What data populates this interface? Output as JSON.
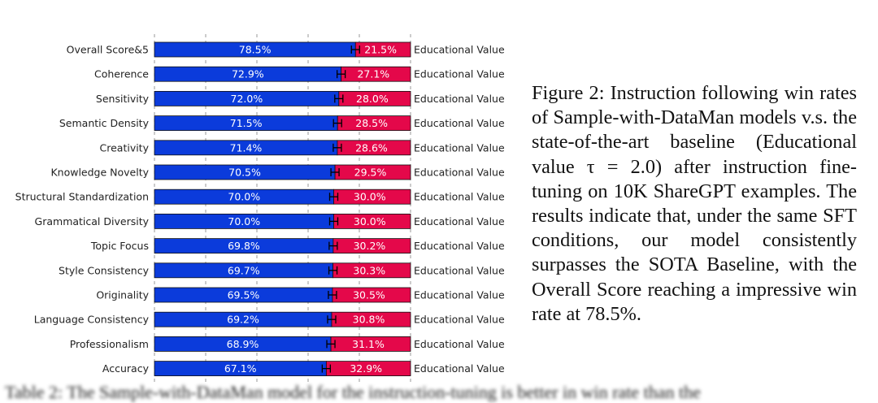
{
  "chart_data": {
    "type": "bar",
    "orientation": "horizontal",
    "stacked": true,
    "categories": [
      "Overall Score&5",
      "Coherence",
      "Sensitivity",
      "Semantic Density",
      "Creativity",
      "Knowledge Novelty",
      "Structural Standardization",
      "Grammatical Diversity",
      "Topic Focus",
      "Style Consistency",
      "Originality",
      "Language Consistency",
      "Professionalism",
      "Accuracy"
    ],
    "series": [
      {
        "values": [
          78.5,
          72.9,
          72.0,
          71.5,
          71.4,
          70.5,
          70.0,
          70.0,
          69.8,
          69.7,
          69.5,
          69.2,
          68.9,
          67.1
        ],
        "color": "#0b3bdb"
      },
      {
        "name": "Educational Value",
        "values": [
          21.5,
          27.1,
          28.0,
          28.5,
          28.6,
          29.5,
          30.0,
          30.0,
          30.2,
          30.3,
          30.5,
          30.8,
          31.1,
          32.9
        ],
        "color": "#e4084a"
      }
    ],
    "value_labels": {
      "left": [
        "78.5%",
        "72.9%",
        "72.0%",
        "71.5%",
        "71.4%",
        "70.5%",
        "70.0%",
        "70.0%",
        "69.8%",
        "69.7%",
        "69.5%",
        "69.2%",
        "68.9%",
        "67.1%"
      ],
      "right": [
        "21.5%",
        "27.1%",
        "28.0%",
        "28.5%",
        "28.6%",
        "29.5%",
        "30.0%",
        "30.0%",
        "30.2%",
        "30.3%",
        "30.5%",
        "30.8%",
        "31.1%",
        "32.9%"
      ],
      "row_suffix": "Educational Value"
    },
    "xlim": [
      0,
      100
    ],
    "error_bars": true,
    "grid": "vertical dashed"
  },
  "caption": "Figure 2:  Instruction following win rates of Sample-with-DataMan models v.s. the state-of-the-art baseline (Educational value τ = 2.0) after instruction fine-tuning on 10K ShareGPT examples.  The results indicate that, under the same SFT conditions, our model consistently surpasses the SOTA Baseline, with the Overall Score reaching a impressive win rate at 78.5%.",
  "next_line": "Table 2: The Sample-with-DataMan model for the instruction-tuning is better in win rate than the",
  "colors": {
    "winner": "#0b3bdb",
    "baseline": "#e4084a",
    "grid": "#9a9a9a"
  }
}
